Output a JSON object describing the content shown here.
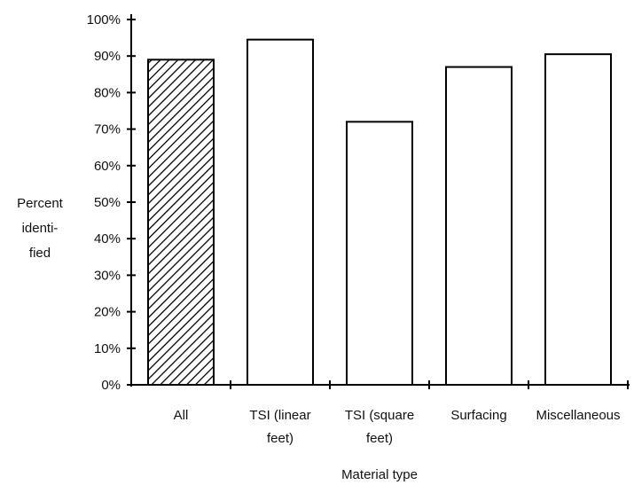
{
  "chart_data": {
    "type": "bar",
    "categories": [
      [
        "All"
      ],
      [
        "TSI (linear",
        "feet)"
      ],
      [
        "TSI (square",
        "feet)"
      ],
      [
        "Surfacing"
      ],
      [
        "Miscellaneous"
      ]
    ],
    "values": [
      89,
      94.5,
      72,
      87,
      90.5
    ],
    "hatched": [
      true,
      false,
      false,
      false,
      false
    ],
    "ylim": [
      0,
      100
    ],
    "yticks": [
      "0%",
      "10%",
      "20%",
      "30%",
      "40%",
      "50%",
      "60%",
      "70%",
      "80%",
      "90%",
      "100%"
    ],
    "ylabel_lines": [
      "Percent",
      "identi-",
      "fied"
    ],
    "xlabel": "Material type",
    "grid": false
  }
}
